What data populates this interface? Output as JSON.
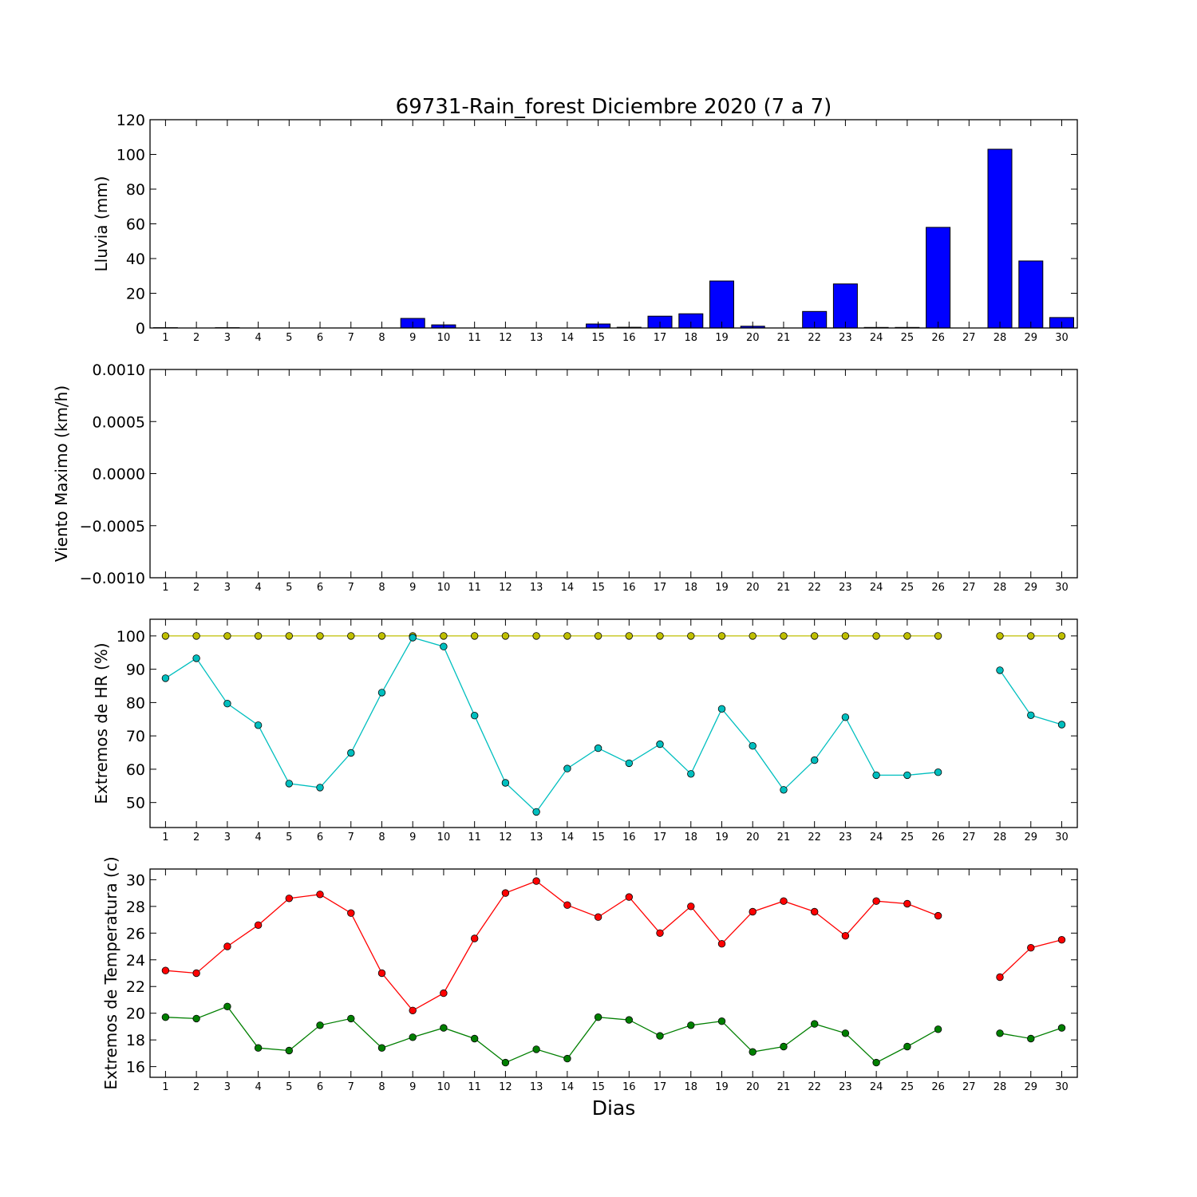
{
  "chart_data": {
    "title": "69731-Rain_forest Diciembre 2020  (7 a 7)",
    "xlabel": "Dias",
    "days": [
      1,
      2,
      3,
      4,
      5,
      6,
      7,
      8,
      9,
      10,
      11,
      12,
      13,
      14,
      15,
      16,
      17,
      18,
      19,
      20,
      21,
      22,
      23,
      24,
      25,
      26,
      27,
      28,
      29,
      30
    ],
    "panels": [
      {
        "type": "bar",
        "ylabel": "Lluvia (mm)",
        "ylim": [
          0,
          120
        ],
        "yticks": [
          0,
          20,
          40,
          60,
          80,
          100,
          120
        ],
        "ytick_labels": [
          "0",
          "20",
          "40",
          "60",
          "80",
          "100",
          "120"
        ],
        "series": [
          {
            "color": "#0000ff",
            "values": [
              0.2,
              0,
              0.2,
              0,
              0,
              0,
              0,
              0,
              5.5,
              1.8,
              0,
              0,
              0,
              0,
              2.3,
              0.4,
              6.8,
              8.2,
              27.1,
              1.0,
              0,
              9.5,
              25.4,
              0.3,
              0.3,
              58.0,
              0,
              103.0,
              38.6,
              6.0
            ]
          }
        ]
      },
      {
        "type": "line",
        "ylabel": "Viento Maximo (km/h)",
        "ylim": [
          -0.001,
          0.001
        ],
        "yticks": [
          -0.001,
          -0.0005,
          0,
          0.0005,
          0.001
        ],
        "ytick_labels": [
          "−0.0010",
          "−0.0005",
          "0.0000",
          "0.0005",
          "0.0010"
        ],
        "series": []
      },
      {
        "type": "line",
        "ylabel": "Extremos de HR (%)",
        "ylim": [
          42.5,
          105
        ],
        "yticks": [
          50,
          60,
          70,
          80,
          90,
          100
        ],
        "ytick_labels": [
          "50",
          "60",
          "70",
          "80",
          "90",
          "100"
        ],
        "series": [
          {
            "color": "#bfbf00",
            "values": [
              100,
              100,
              100,
              100,
              100,
              100,
              100,
              100,
              100,
              100,
              100,
              100,
              100,
              100,
              100,
              100,
              100,
              100,
              100,
              100,
              100,
              100,
              100,
              100,
              100,
              100,
              null,
              100,
              100,
              100
            ]
          },
          {
            "color": "#00bfbf",
            "values": [
              87.3,
              93.3,
              79.7,
              73.2,
              55.7,
              54.5,
              64.9,
              83.0,
              99.5,
              96.8,
              76.1,
              55.9,
              47.2,
              60.2,
              66.3,
              61.8,
              67.5,
              58.6,
              78.1,
              67.0,
              53.8,
              62.7,
              75.6,
              58.2,
              58.2,
              59.1,
              null,
              89.7,
              76.2,
              73.4
            ]
          }
        ]
      },
      {
        "type": "line",
        "ylabel": "Extremos de Temperatura (c)",
        "ylim": [
          15.2,
          30.8
        ],
        "yticks": [
          16,
          18,
          20,
          22,
          24,
          26,
          28,
          30
        ],
        "ytick_labels": [
          "16",
          "18",
          "20",
          "22",
          "24",
          "26",
          "28",
          "30"
        ],
        "series": [
          {
            "color": "#ff0000",
            "values": [
              23.2,
              23.0,
              25.0,
              26.6,
              28.6,
              28.9,
              27.5,
              23.0,
              20.2,
              21.5,
              25.6,
              29.0,
              29.9,
              28.1,
              27.2,
              28.7,
              26.0,
              28.0,
              25.2,
              27.6,
              28.4,
              27.6,
              25.8,
              28.4,
              28.2,
              27.3,
              null,
              22.7,
              24.9,
              25.5
            ]
          },
          {
            "color": "#007f00",
            "values": [
              19.7,
              19.6,
              20.5,
              17.4,
              17.2,
              19.1,
              19.6,
              17.4,
              18.2,
              18.9,
              18.1,
              16.3,
              17.3,
              16.6,
              19.7,
              19.5,
              18.3,
              19.1,
              19.4,
              17.1,
              17.5,
              19.2,
              18.5,
              16.3,
              17.5,
              18.8,
              null,
              18.5,
              18.1,
              18.9
            ]
          }
        ]
      }
    ]
  }
}
